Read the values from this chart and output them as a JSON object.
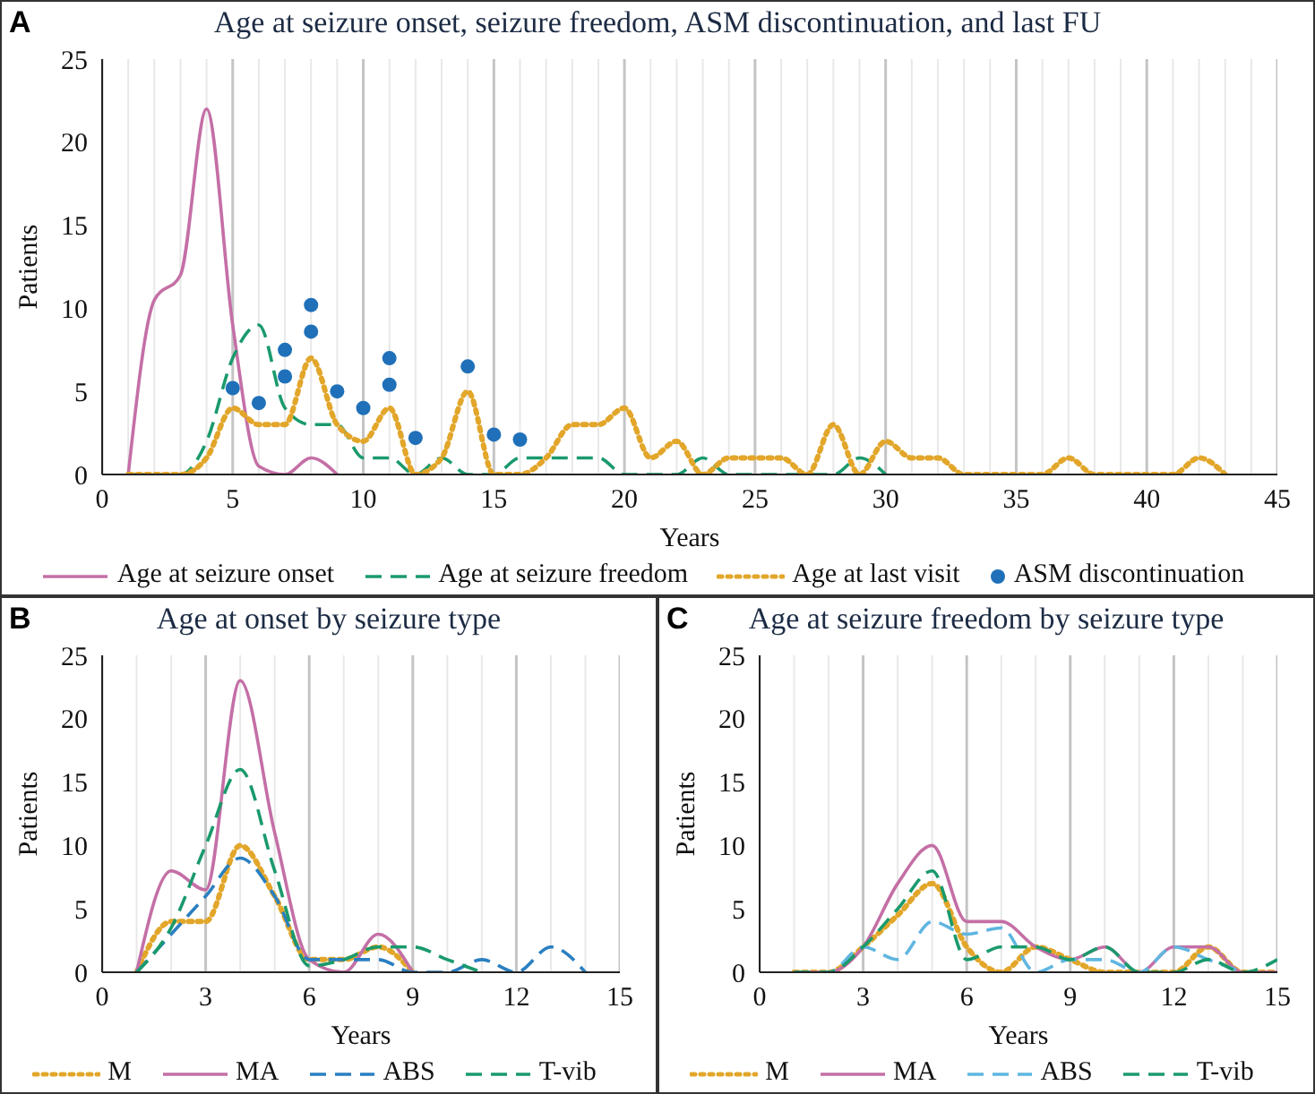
{
  "chart_data": [
    {
      "type": "line",
      "title": "Age at seizure onset, seizure freedom, ASM discontinuation, and last FU",
      "xlabel": "Years",
      "ylabel": "Patients",
      "annotations": [
        "A"
      ],
      "xlim": [
        0,
        45
      ],
      "ylim": [
        0,
        25
      ],
      "yticks": [
        0,
        5,
        10,
        15,
        20,
        25
      ],
      "grid": "x",
      "legend": "bottom",
      "marker": "none",
      "xticks": [
        0,
        {
          "value": 1,
          "label": null
        },
        {
          "value": 2,
          "label": null
        },
        {
          "value": 3,
          "label": null
        },
        {
          "value": 4,
          "label": null
        },
        5,
        {
          "value": 6,
          "label": null
        },
        {
          "value": 7,
          "label": null
        },
        {
          "value": 8,
          "label": null
        },
        {
          "value": 9,
          "label": null
        },
        10,
        {
          "value": 11,
          "label": null
        },
        {
          "value": 12,
          "label": null
        },
        {
          "value": 13,
          "label": null
        },
        {
          "value": 14,
          "label": null
        },
        15,
        {
          "value": 16,
          "label": null
        },
        {
          "value": 17,
          "label": null
        },
        {
          "value": 18,
          "label": null
        },
        {
          "value": 19,
          "label": null
        },
        20,
        {
          "value": 21,
          "label": null
        },
        {
          "value": 22,
          "label": null
        },
        {
          "value": 23,
          "label": null
        },
        {
          "value": 24,
          "label": null
        },
        25,
        {
          "value": 26,
          "label": null
        },
        {
          "value": 27,
          "label": null
        },
        {
          "value": 28,
          "label": null
        },
        {
          "value": 29,
          "label": null
        },
        30,
        {
          "value": 31,
          "label": null
        },
        {
          "value": 32,
          "label": null
        },
        {
          "value": 33,
          "label": null
        },
        {
          "value": 34,
          "label": null
        },
        35,
        {
          "value": 36,
          "label": null
        },
        {
          "value": 37,
          "label": null
        },
        {
          "value": 38,
          "label": null
        },
        {
          "value": 39,
          "label": null
        },
        40,
        {
          "value": 41,
          "label": null
        },
        {
          "value": 42,
          "label": null
        },
        {
          "value": 43,
          "label": null
        },
        {
          "value": 44,
          "label": null
        },
        45
      ],
      "series": [
        {
          "name": "Age at seizure onset",
          "color": "#c46fa6",
          "line_style": "solid",
          "x": [
            1,
            2,
            3,
            4,
            5,
            6,
            7,
            8,
            9
          ],
          "values": [
            0,
            10.5,
            12,
            22,
            9,
            0.5,
            0,
            1,
            0
          ]
        },
        {
          "name": "Age at seizure freedom",
          "color": "#1a9a6c",
          "line_style": "dashed",
          "x": [
            1,
            2,
            3,
            4,
            5,
            6,
            7,
            8,
            9,
            10,
            11,
            12,
            13,
            14,
            15,
            16,
            17,
            18,
            19,
            20,
            21,
            22,
            23,
            24,
            25,
            26,
            27,
            28,
            29,
            30
          ],
          "values": [
            0,
            0,
            0,
            2,
            7,
            9,
            4,
            3,
            3,
            1,
            1,
            0,
            1,
            0,
            0,
            1,
            1,
            1,
            1,
            0,
            0,
            0,
            1,
            0,
            0,
            0,
            0,
            0,
            1,
            0
          ]
        },
        {
          "name": "Age at last visit",
          "color": "#e2a62a",
          "line_style": "dotted",
          "x": [
            1,
            2,
            3,
            4,
            5,
            6,
            7,
            8,
            9,
            10,
            11,
            12,
            13,
            14,
            15,
            16,
            17,
            18,
            19,
            20,
            21,
            22,
            23,
            24,
            25,
            26,
            27,
            28,
            29,
            30,
            31,
            32,
            33,
            34,
            35,
            36,
            37,
            38,
            39,
            40,
            41,
            42,
            43
          ],
          "values": [
            0,
            0,
            0,
            1,
            4,
            3,
            3,
            7,
            3,
            2,
            4,
            0,
            1,
            5,
            0,
            0,
            1,
            3,
            3,
            4,
            1,
            2,
            0,
            1,
            1,
            1,
            0,
            3,
            0,
            2,
            1,
            1,
            0,
            0,
            0,
            0,
            1,
            0,
            0,
            0,
            0,
            1,
            0
          ]
        },
        {
          "name": "ASM discontinuation",
          "type": "scatter",
          "marker": "circle",
          "color": "#1f70b8",
          "x": [
            5,
            6,
            7,
            7,
            8,
            8,
            9,
            10,
            11,
            11,
            12,
            14,
            15,
            16
          ],
          "values": [
            5.2,
            4.3,
            7.5,
            5.9,
            10.2,
            8.6,
            5,
            4,
            7,
            5.4,
            2.2,
            6.5,
            2.4,
            2.1
          ]
        }
      ]
    },
    {
      "type": "line",
      "title": "Age at onset by seizure type",
      "xlabel": "Years",
      "ylabel": "Patients",
      "annotations": [
        "B"
      ],
      "xlim": [
        0,
        15
      ],
      "ylim": [
        0,
        25
      ],
      "yticks": [
        0,
        5,
        10,
        15,
        20,
        25
      ],
      "grid": "x",
      "legend": "bottom",
      "marker": "none",
      "xticks": [
        0,
        {
          "value": 1,
          "label": null
        },
        {
          "value": 2,
          "label": null
        },
        3,
        {
          "value": 4,
          "label": null
        },
        {
          "value": 5,
          "label": null
        },
        6,
        {
          "value": 7,
          "label": null
        },
        {
          "value": 8,
          "label": null
        },
        9,
        {
          "value": 10,
          "label": null
        },
        {
          "value": 11,
          "label": null
        },
        12,
        {
          "value": 13,
          "label": null
        },
        {
          "value": 14,
          "label": null
        },
        15
      ],
      "series": [
        {
          "name": "M",
          "color": "#e2a62a",
          "line_style": "dotted",
          "x": [
            1,
            2,
            3,
            4,
            5,
            6,
            7,
            8,
            9
          ],
          "values": [
            0,
            4,
            4,
            10,
            6,
            1,
            1,
            2,
            0
          ]
        },
        {
          "name": "MA",
          "color": "#c46fa6",
          "line_style": "solid",
          "x": [
            1,
            2,
            3,
            4,
            5,
            6,
            7,
            8,
            9
          ],
          "values": [
            0,
            8,
            6.5,
            23,
            11,
            1,
            0,
            3,
            0
          ]
        },
        {
          "name": "ABS",
          "color": "#2a7fc0",
          "line_style": "dashed",
          "x": [
            1,
            2,
            3,
            4,
            5,
            6,
            7,
            8,
            9,
            10,
            11,
            12,
            13,
            14
          ],
          "values": [
            0,
            3,
            6,
            9,
            6,
            1,
            1,
            1,
            0,
            0,
            1,
            0,
            2,
            0
          ]
        },
        {
          "name": "T-vib",
          "color": "#1a9a6c",
          "line_style": "dashed",
          "x": [
            1,
            2,
            3,
            4,
            5,
            6,
            7,
            8,
            9,
            10,
            11
          ],
          "values": [
            0,
            3.5,
            10,
            16,
            8,
            0.5,
            1,
            2,
            2,
            1,
            0
          ]
        }
      ]
    },
    {
      "type": "line",
      "title": "Age at seizure freedom by seizure type",
      "xlabel": "Years",
      "ylabel": "Patients",
      "annotations": [
        "C"
      ],
      "xlim": [
        0,
        15
      ],
      "ylim": [
        0,
        25
      ],
      "yticks": [
        0,
        5,
        10,
        15,
        20,
        25
      ],
      "grid": "x",
      "legend": "bottom",
      "marker": "none",
      "xticks": [
        0,
        {
          "value": 1,
          "label": null
        },
        {
          "value": 2,
          "label": null
        },
        3,
        {
          "value": 4,
          "label": null
        },
        {
          "value": 5,
          "label": null
        },
        6,
        {
          "value": 7,
          "label": null
        },
        {
          "value": 8,
          "label": null
        },
        9,
        {
          "value": 10,
          "label": null
        },
        {
          "value": 11,
          "label": null
        },
        12,
        {
          "value": 13,
          "label": null
        },
        {
          "value": 14,
          "label": null
        },
        15
      ],
      "series": [
        {
          "name": "M",
          "color": "#e2a62a",
          "line_style": "dotted",
          "x": [
            1,
            2,
            3,
            4,
            5,
            6,
            7,
            8,
            9,
            10,
            11,
            12,
            13,
            14,
            15
          ],
          "values": [
            0,
            0,
            2,
            4.5,
            7,
            2,
            0,
            2,
            1,
            0,
            0,
            0,
            2,
            0,
            0
          ]
        },
        {
          "name": "MA",
          "color": "#c46fa6",
          "line_style": "solid",
          "x": [
            1,
            2,
            3,
            4,
            5,
            6,
            7,
            8,
            9,
            10,
            11,
            12,
            13,
            14,
            15
          ],
          "values": [
            0,
            0,
            2,
            7,
            10,
            4,
            4,
            2,
            1,
            2,
            0,
            2,
            2,
            0,
            0
          ]
        },
        {
          "name": "ABS",
          "color": "#5fb6e0",
          "line_style": "dashed",
          "x": [
            1,
            2,
            3,
            4,
            5,
            6,
            7,
            8,
            9,
            10,
            11,
            12,
            13,
            14
          ],
          "values": [
            0,
            0,
            2,
            1,
            4,
            3,
            3.5,
            0,
            1,
            1,
            0,
            2,
            1,
            0
          ]
        },
        {
          "name": "T-vib",
          "color": "#1a9a6c",
          "line_style": "dashed",
          "x": [
            1,
            2,
            3,
            4,
            5,
            6,
            7,
            8,
            9,
            10,
            11,
            12,
            13,
            14,
            15
          ],
          "values": [
            0,
            0,
            2,
            5,
            8,
            1,
            2,
            2,
            1,
            2,
            0,
            0,
            1,
            0,
            1
          ]
        }
      ]
    }
  ]
}
